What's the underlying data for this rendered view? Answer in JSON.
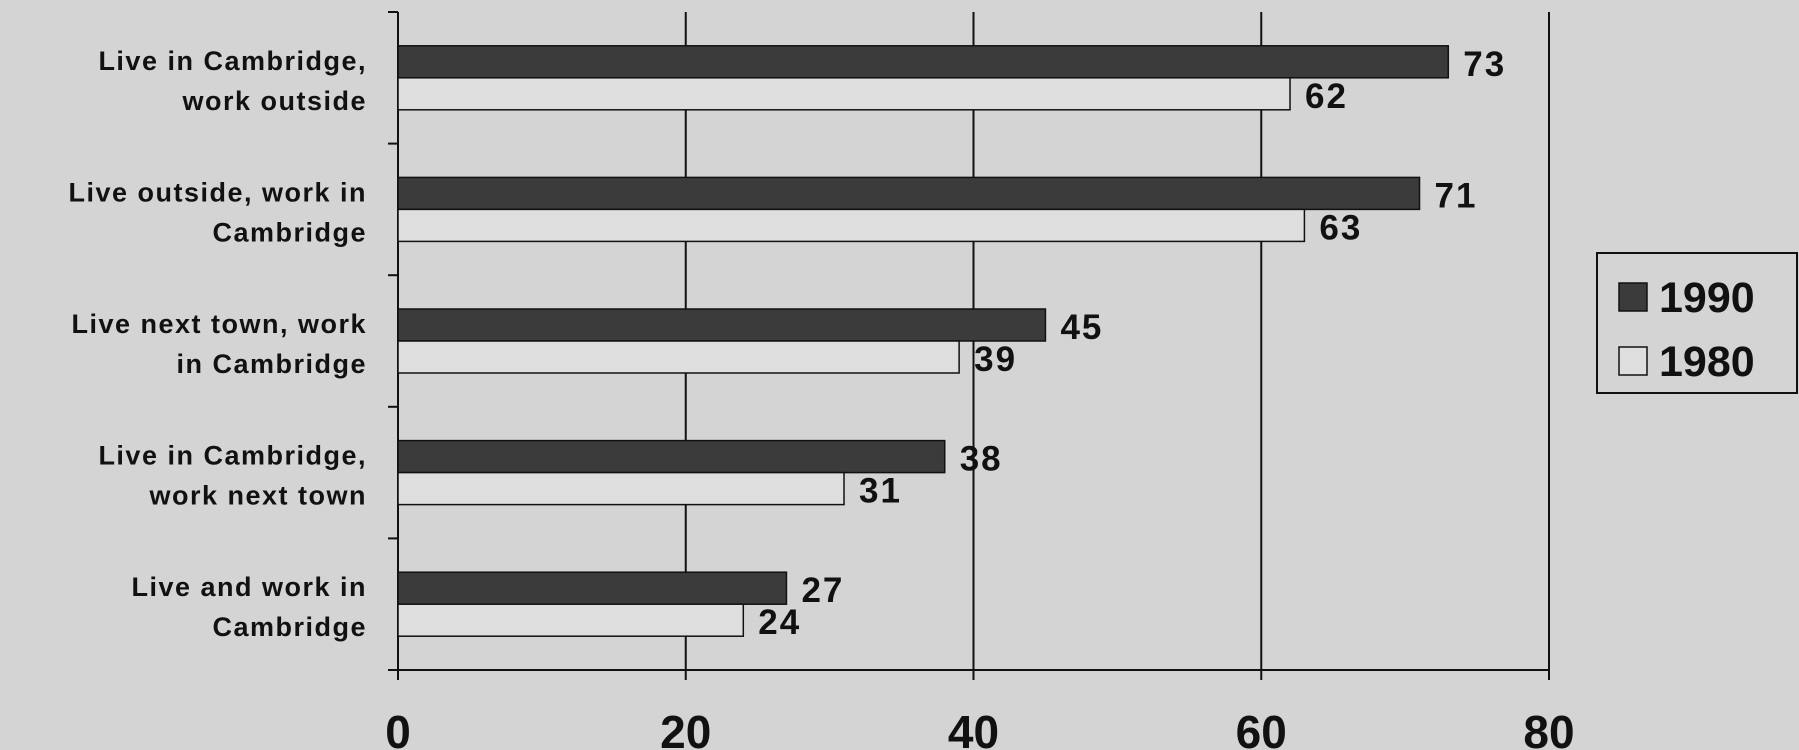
{
  "chart_data": {
    "type": "bar",
    "orientation": "horizontal",
    "title": "",
    "xlabel": "",
    "ylabel": "",
    "categories": [
      "Live in Cambridge, work outside",
      "Live outside, work in Cambridge",
      "Live next town, work in Cambridge",
      "Live in Cambridge, work next town",
      "Live and work in Cambridge"
    ],
    "category_label_lines": [
      [
        "Live in Cambridge,",
        "work outside"
      ],
      [
        "Live outside, work in",
        "Cambridge"
      ],
      [
        "Live next town, work",
        "in Cambridge"
      ],
      [
        "Live in Cambridge,",
        "work next town"
      ],
      [
        "Live and work in",
        "Cambridge"
      ]
    ],
    "series": [
      {
        "name": "1990",
        "values": [
          73,
          71,
          45,
          38,
          27
        ],
        "color": "#3b3b3b"
      },
      {
        "name": "1980",
        "values": [
          62,
          63,
          39,
          31,
          24
        ],
        "color": "#dedede"
      }
    ],
    "xlim": [
      0,
      80
    ],
    "x_ticks": [
      0,
      20,
      40,
      60,
      80
    ],
    "x_tick_labels": [
      "0",
      "20",
      "40",
      "60",
      "80"
    ],
    "grid": "vertical",
    "legend_position": "right",
    "data_labels": true
  }
}
